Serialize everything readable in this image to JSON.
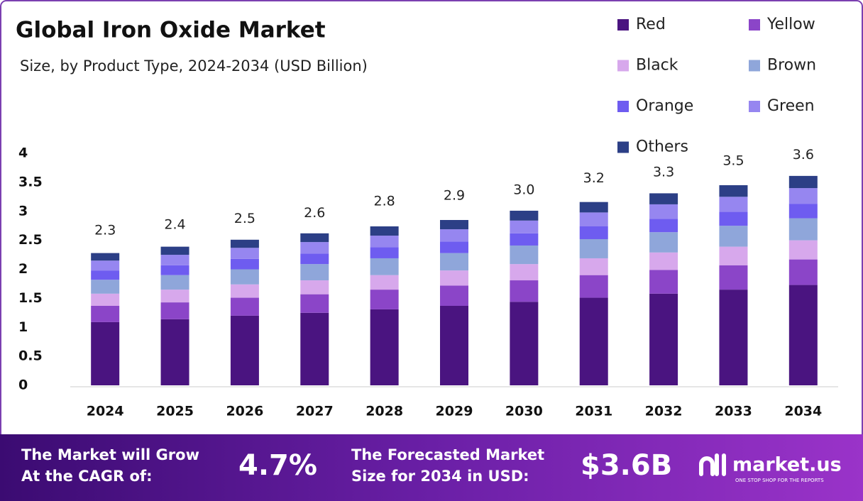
{
  "chart_data": {
    "type": "stacked_bar",
    "title": "Global Iron Oxide Market",
    "subtitle": "Size, by Product Type, 2024-2034 (USD Billion)",
    "categories": [
      "2024",
      "2025",
      "2026",
      "2027",
      "2028",
      "2029",
      "2030",
      "2031",
      "2032",
      "2033",
      "2034"
    ],
    "series": [
      {
        "name": "Red",
        "color": "#4a1480",
        "values": [
          1.09,
          1.14,
          1.2,
          1.25,
          1.31,
          1.37,
          1.44,
          1.51,
          1.58,
          1.65,
          1.73
        ]
      },
      {
        "name": "Yellow",
        "color": "#8b45c8",
        "values": [
          0.28,
          0.29,
          0.31,
          0.32,
          0.34,
          0.35,
          0.37,
          0.39,
          0.41,
          0.42,
          0.44
        ]
      },
      {
        "name": "Black",
        "color": "#d7a8ec",
        "values": [
          0.21,
          0.22,
          0.23,
          0.24,
          0.25,
          0.26,
          0.28,
          0.29,
          0.3,
          0.32,
          0.33
        ]
      },
      {
        "name": "Brown",
        "color": "#8fa6da",
        "values": [
          0.24,
          0.25,
          0.26,
          0.28,
          0.29,
          0.3,
          0.32,
          0.33,
          0.35,
          0.36,
          0.38
        ]
      },
      {
        "name": "Orange",
        "color": "#6e5cf0",
        "values": [
          0.16,
          0.17,
          0.18,
          0.18,
          0.19,
          0.2,
          0.21,
          0.22,
          0.23,
          0.24,
          0.25
        ]
      },
      {
        "name": "Green",
        "color": "#9686f0",
        "values": [
          0.17,
          0.18,
          0.19,
          0.2,
          0.2,
          0.21,
          0.22,
          0.24,
          0.25,
          0.26,
          0.27
        ]
      },
      {
        "name": "Others",
        "color": "#2c3f86",
        "values": [
          0.13,
          0.14,
          0.14,
          0.15,
          0.16,
          0.16,
          0.17,
          0.18,
          0.19,
          0.2,
          0.21
        ]
      }
    ],
    "totals": {
      "values": [
        2.3,
        2.4,
        2.5,
        2.6,
        2.8,
        2.9,
        3.0,
        3.2,
        3.3,
        3.5,
        3.6
      ],
      "value_labels": [
        "2.3",
        "2.4",
        "2.5",
        "2.6",
        "2.8",
        "2.9",
        "3.0",
        "3.2",
        "3.3",
        "3.5",
        "3.6"
      ]
    },
    "ylim": [
      0,
      4
    ],
    "yticks": [
      0,
      0.5,
      1,
      1.5,
      2,
      2.5,
      3,
      3.5,
      4
    ],
    "grid": false,
    "legend": "top-right"
  },
  "banner": {
    "cagr_line1": "The Market will Grow",
    "cagr_line2": "At the CAGR of:",
    "cagr_value": "4.7%",
    "forecast_line1": "The Forecasted Market",
    "forecast_line2": "Size for 2034 in USD:",
    "forecast_value": "$3.6B",
    "brand": "market.us",
    "tagline": "ONE STOP SHOP FOR THE REPORTS"
  }
}
